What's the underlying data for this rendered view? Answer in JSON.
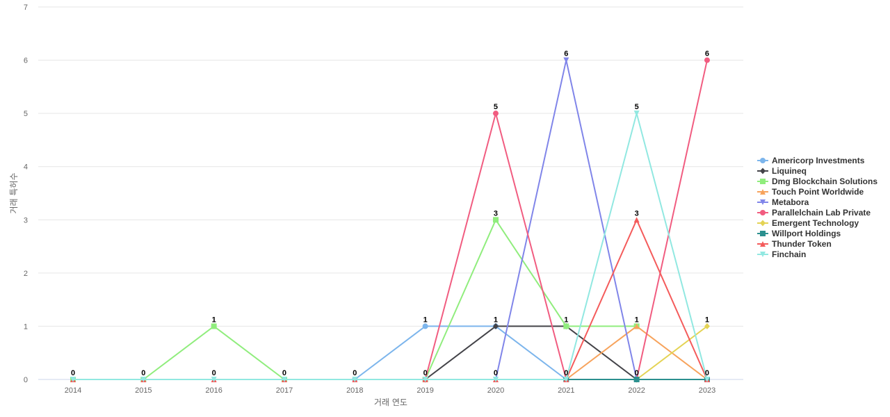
{
  "chart_data": {
    "type": "line",
    "title": "",
    "xlabel": "거래 연도",
    "ylabel": "거래 특허수",
    "x": [
      "2014",
      "2015",
      "2016",
      "2017",
      "2018",
      "2019",
      "2020",
      "2021",
      "2022",
      "2023"
    ],
    "ylim": [
      0,
      7
    ],
    "yticks": [
      0,
      1,
      2,
      3,
      4,
      5,
      6,
      7
    ],
    "grid": true,
    "legend_position": "right",
    "series": [
      {
        "name": "Americorp Investments",
        "color": "#7cb5ec",
        "marker": "circle",
        "values": [
          null,
          null,
          null,
          null,
          0,
          1,
          1,
          0,
          null,
          null
        ]
      },
      {
        "name": "Liquineq",
        "color": "#434348",
        "marker": "diamond",
        "values": [
          null,
          null,
          null,
          null,
          null,
          0,
          1,
          1,
          0,
          null
        ]
      },
      {
        "name": "Dmg Blockchain Solutions",
        "color": "#90ed7d",
        "marker": "square",
        "values": [
          0,
          0,
          1,
          0,
          null,
          0,
          3,
          1,
          1,
          null
        ]
      },
      {
        "name": "Touch Point Worldwide",
        "color": "#f7a35c",
        "marker": "triangle",
        "values": [
          null,
          null,
          null,
          null,
          null,
          null,
          null,
          0,
          1,
          0
        ]
      },
      {
        "name": "Metabora",
        "color": "#8085e9",
        "marker": "triangle-down",
        "values": [
          null,
          null,
          null,
          null,
          null,
          null,
          0,
          6,
          0,
          null
        ]
      },
      {
        "name": "Parallelchain Lab Private",
        "color": "#f15c80",
        "marker": "circle",
        "values": [
          null,
          null,
          null,
          null,
          null,
          0,
          5,
          0,
          0,
          6
        ]
      },
      {
        "name": "Emergent Technology",
        "color": "#e4d354",
        "marker": "diamond",
        "values": [
          null,
          null,
          null,
          null,
          null,
          null,
          null,
          null,
          0,
          1
        ]
      },
      {
        "name": "Willport Holdings",
        "color": "#2b908f",
        "marker": "square",
        "values": [
          null,
          null,
          null,
          null,
          null,
          null,
          null,
          0,
          0,
          0
        ]
      },
      {
        "name": "Thunder Token",
        "color": "#f45b5b",
        "marker": "triangle",
        "values": [
          0,
          0,
          0,
          0,
          0,
          0,
          0,
          0,
          3,
          0
        ]
      },
      {
        "name": "Finchain",
        "color": "#91e8e1",
        "marker": "triangle-down",
        "values": [
          0,
          0,
          0,
          0,
          0,
          0,
          0,
          0,
          5,
          0
        ]
      }
    ],
    "data_labels": [
      {
        "x": "2014",
        "text": "0"
      },
      {
        "x": "2015",
        "text": "0"
      },
      {
        "x": "2016",
        "text": "1",
        "value": 1
      },
      {
        "x": "2016",
        "text": "0",
        "value": 0
      },
      {
        "x": "2017",
        "text": "0"
      },
      {
        "x": "2018",
        "text": "0"
      },
      {
        "x": "2019",
        "text": "1",
        "value": 1
      },
      {
        "x": "2019",
        "text": "0",
        "value": 0
      },
      {
        "x": "2020",
        "text": "5",
        "value": 5
      },
      {
        "x": "2020",
        "text": "3",
        "value": 3
      },
      {
        "x": "2020",
        "text": "1",
        "value": 1
      },
      {
        "x": "2020",
        "text": "0",
        "value": 0
      },
      {
        "x": "2021",
        "text": "6",
        "value": 6
      },
      {
        "x": "2021",
        "text": "1",
        "value": 1
      },
      {
        "x": "2021",
        "text": "0",
        "value": 0
      },
      {
        "x": "2022",
        "text": "5",
        "value": 5
      },
      {
        "x": "2022",
        "text": "3",
        "value": 3
      },
      {
        "x": "2022",
        "text": "1",
        "value": 1
      },
      {
        "x": "2022",
        "text": "0",
        "value": 0
      },
      {
        "x": "2023",
        "text": "6",
        "value": 6
      },
      {
        "x": "2023",
        "text": "1",
        "value": 1
      },
      {
        "x": "2023",
        "text": "0",
        "value": 0
      }
    ]
  }
}
